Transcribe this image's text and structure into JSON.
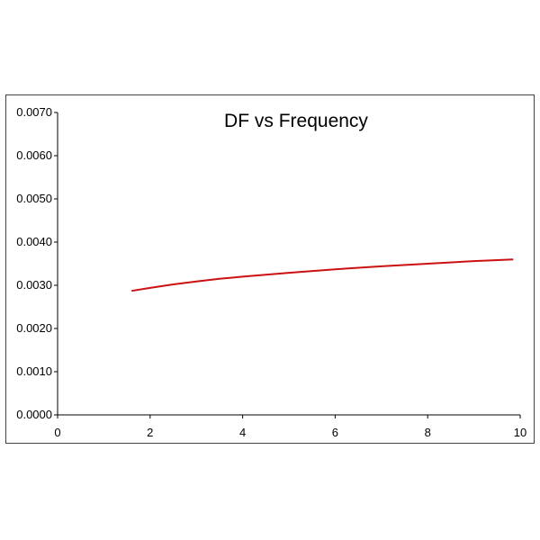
{
  "chart_data": {
    "type": "line",
    "title": "DF vs Frequency",
    "xlabel": "",
    "ylabel": "",
    "xlim": [
      0,
      10
    ],
    "ylim": [
      0.0,
      0.007
    ],
    "x_ticks": [
      "0",
      "2",
      "4",
      "6",
      "8",
      "10"
    ],
    "y_ticks": [
      "0.0000",
      "0.0010",
      "0.0020",
      "0.0030",
      "0.0040",
      "0.0050",
      "0.0060",
      "0.0070"
    ],
    "grid": false,
    "legend": "none",
    "line_color": "#cc1111",
    "series": [
      {
        "x": [
          1.6,
          2.0,
          2.5,
          3.0,
          3.5,
          4.0,
          5.0,
          6.0,
          7.0,
          8.0,
          9.0,
          9.85
        ],
        "y": [
          0.00287,
          0.00294,
          0.00302,
          0.00309,
          0.00315,
          0.0032,
          0.00329,
          0.00337,
          0.00344,
          0.0035,
          0.00356,
          0.0036
        ]
      }
    ]
  }
}
